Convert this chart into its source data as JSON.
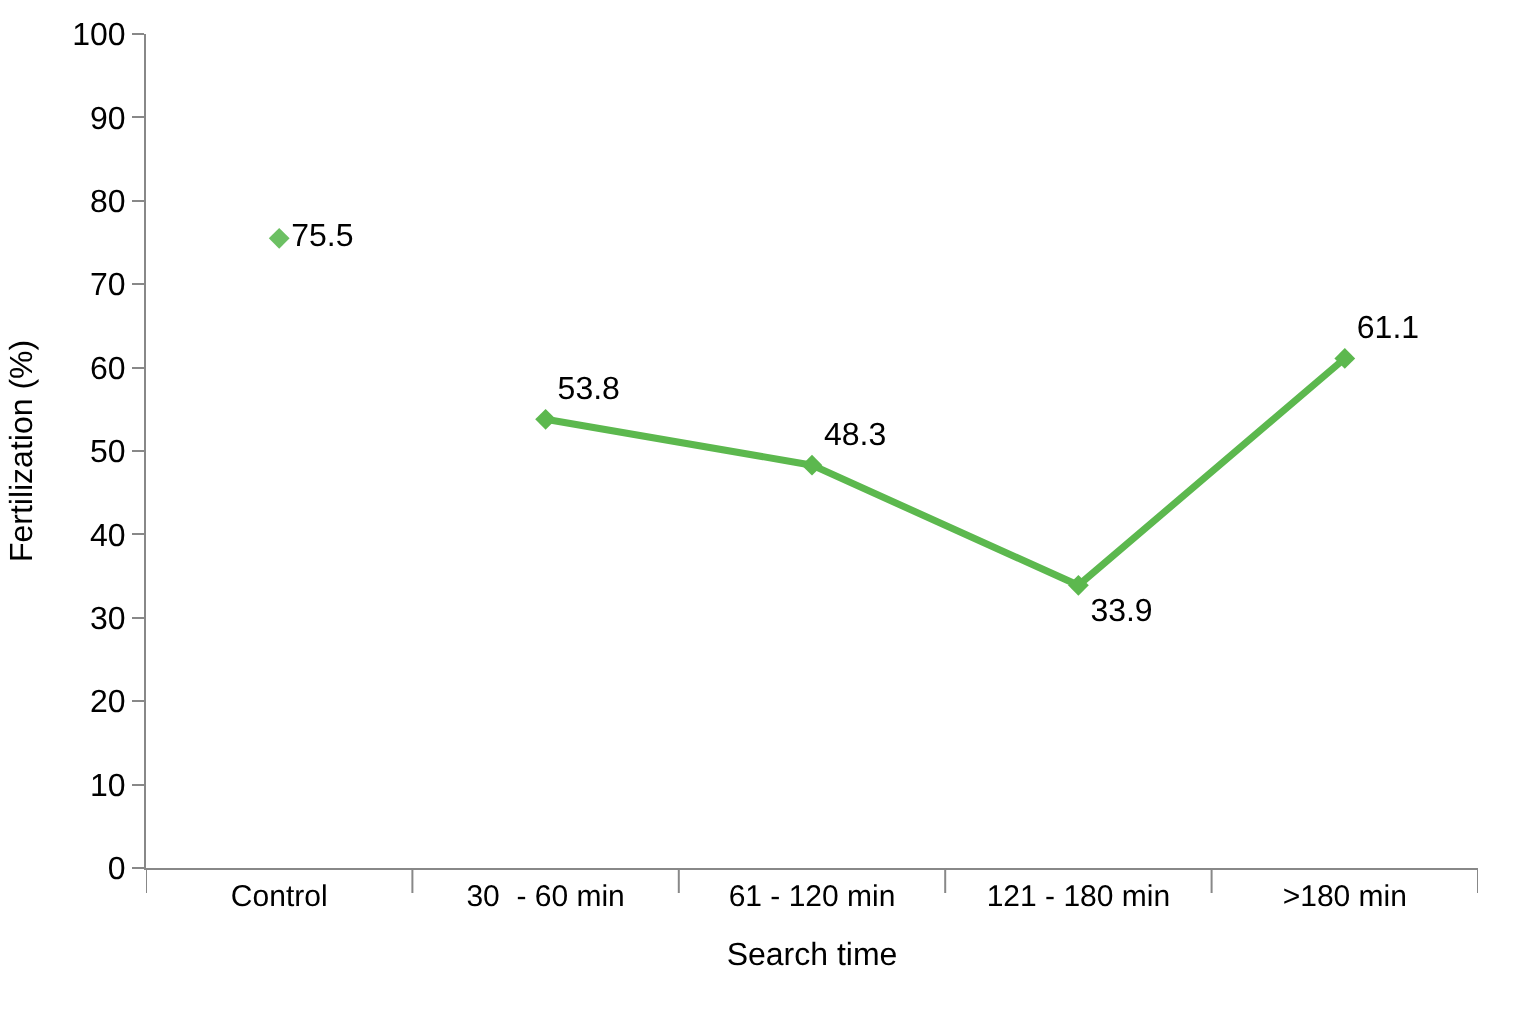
{
  "chart_data": {
    "type": "line",
    "xlabel": "Search time",
    "ylabel": "Fertilization (%)",
    "categories": [
      "Control",
      "30  - 60 min",
      "61 - 120 min",
      "121 - 180 min",
      ">180 min"
    ],
    "series": [
      {
        "type": "scatter",
        "color": "#6cc063",
        "values": [
          75.5,
          null,
          null,
          null,
          null
        ]
      },
      {
        "color": "#5cb84e",
        "values": [
          null,
          53.8,
          48.3,
          33.9,
          61.1
        ]
      }
    ],
    "ylim": [
      0,
      100
    ],
    "yticks": [
      0,
      10,
      20,
      30,
      40,
      50,
      60,
      70,
      80,
      90,
      100
    ],
    "marker": "diamond",
    "line_style": "solid",
    "data_labels": true
  }
}
